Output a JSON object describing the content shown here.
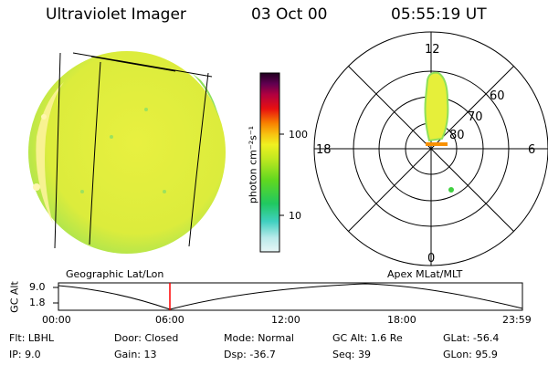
{
  "header": {
    "title": "Ultraviolet Imager",
    "date": "03 Oct 00",
    "time": "05:55:19 UT"
  },
  "colorbar": {
    "unit_label": "photon cm⁻²s⁻¹",
    "ticks": [
      "100",
      "10"
    ]
  },
  "polar": {
    "mlt_labels": [
      "12",
      "18",
      "6",
      "0"
    ],
    "mlat_labels": [
      "60",
      "70",
      "80"
    ]
  },
  "subtitles": {
    "left": "Geographic Lat/Lon",
    "right": "Apex MLat/MLT"
  },
  "altitude_plot": {
    "axis_label": "GC Alt",
    "y_ticks": [
      "9.0",
      "1.8"
    ],
    "x_ticks": [
      "00:00",
      "06:00",
      "12:00",
      "18:00",
      "23:59"
    ]
  },
  "info": {
    "row1": [
      {
        "key": "Flt:",
        "value": "LBHL"
      },
      {
        "key": "Door:",
        "value": "Closed"
      },
      {
        "key": "Mode:",
        "value": "Normal"
      },
      {
        "key": "GC Alt:",
        "value": "1.6 Re"
      },
      {
        "key": "GLat:",
        "value": "-56.4"
      }
    ],
    "row2": [
      {
        "key": "IP:",
        "value": "9.0"
      },
      {
        "key": "Gain:",
        "value": "13"
      },
      {
        "key": "Dsp:",
        "value": "-36.7"
      },
      {
        "key": "Seq:",
        "value": "39"
      },
      {
        "key": "GLon:",
        "value": "95.9"
      }
    ]
  },
  "colors": {
    "disk_main": "#e6ef3a",
    "disk_edge": "#8ee05a",
    "limb_bright": "#fff6a8",
    "aurora": "#e6ef3a",
    "cursor": "#ff0000"
  }
}
